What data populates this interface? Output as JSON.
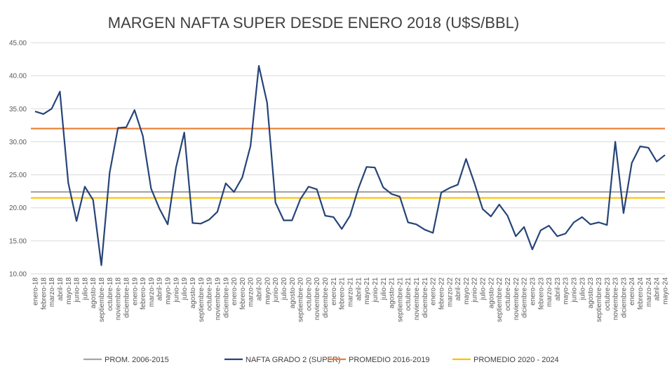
{
  "chart_data": {
    "type": "line",
    "title": "MARGEN NAFTA SUPER DESDE ENERO 2018 (U$S/BBL)",
    "xlabel": "",
    "ylabel": "",
    "ylim": [
      10,
      45
    ],
    "yticks": [
      "10.00",
      "15.00",
      "20.00",
      "25.00",
      "30.00",
      "35.00",
      "40.00",
      "45.00"
    ],
    "grid": true,
    "legend_position": "bottom",
    "categories": [
      "enero-18",
      "febrero-18",
      "marzo-18",
      "abril-18",
      "mayo-18",
      "junio-18",
      "julio-18",
      "agosto-18",
      "septiembre-18",
      "octubre-18",
      "noviembre-18",
      "diciembre-18",
      "enero-19",
      "febrero-19",
      "marzo-19",
      "abril-19",
      "mayo-19",
      "junio-19",
      "julio-19",
      "agosto-19",
      "septiembre-19",
      "octubre-19",
      "noviembre-19",
      "diciembre-19",
      "enero-20",
      "febrero-20",
      "marzo-20",
      "abril-20",
      "mayo-20",
      "junio-20",
      "julio-20",
      "agosto-20",
      "septiembre-20",
      "octubre-20",
      "noviembre-20",
      "diciembre-20",
      "enero-21",
      "febrero-21",
      "marzo-21",
      "abril-21",
      "mayo-21",
      "junio-21",
      "julio-21",
      "agosto-21",
      "septiembre-21",
      "octubre-21",
      "noviembre-21",
      "diciembre-21",
      "enero-22",
      "febrero-22",
      "marzo-22",
      "abril-22",
      "mayo-22",
      "junio-22",
      "julio-22",
      "agosto-22",
      "septiembre-22",
      "octubre-22",
      "noviembre-22",
      "diciembre-22",
      "enero-23",
      "febrero-23",
      "marzo-23",
      "abril-23",
      "mayo-23",
      "junio-23",
      "julio-23",
      "agosto-23",
      "septiembre-23",
      "octubre-23",
      "noviembre-23",
      "diciembre-23",
      "enero-24",
      "febrero-24",
      "marzo-24",
      "abril-24",
      "mayo-24"
    ],
    "series": [
      {
        "name": "NAFTA GRADO 2 (SUPER)",
        "color": "#264478",
        "values": [
          34.6,
          34.2,
          35.0,
          37.6,
          23.8,
          18.0,
          23.2,
          21.2,
          11.3,
          25.3,
          32.1,
          32.2,
          34.8,
          30.9,
          22.9,
          19.9,
          17.5,
          26.1,
          31.4,
          17.7,
          17.6,
          18.2,
          19.4,
          23.7,
          22.4,
          24.6,
          29.4,
          41.5,
          35.9,
          20.8,
          18.1,
          18.1,
          21.3,
          23.2,
          22.8,
          18.8,
          18.6,
          16.8,
          18.8,
          22.9,
          26.2,
          26.1,
          23.1,
          22.1,
          21.7,
          17.8,
          17.5,
          16.7,
          16.2,
          22.3,
          23.0,
          23.5,
          27.4,
          23.8,
          19.8,
          18.7,
          20.5,
          18.8,
          15.7,
          17.1,
          13.7,
          16.6,
          17.3,
          15.7,
          16.1,
          17.8,
          18.6,
          17.5,
          17.8,
          17.4,
          30.0,
          19.2,
          26.8,
          29.3,
          29.1,
          27.0,
          28.0
        ]
      },
      {
        "name": "PROM. 2006-2015",
        "color": "#A5A5A5",
        "constant": 22.4
      },
      {
        "name": "PROMEDIO 2016-2019",
        "color": "#ED7D31",
        "constant": 32.0
      },
      {
        "name": "PROMEDIO 2020 - 2024",
        "color": "#FFC000",
        "constant": 21.5
      }
    ],
    "legend": [
      {
        "label": "PROM. 2006-2015",
        "color": "#A5A5A5"
      },
      {
        "label": "NAFTA GRADO 2 (SUPER)",
        "color": "#264478"
      },
      {
        "label": "PROMEDIO 2016-2019",
        "color": "#ED7D31"
      },
      {
        "label": "PROMEDIO 2020 - 2024",
        "color": "#FFC000"
      }
    ]
  }
}
